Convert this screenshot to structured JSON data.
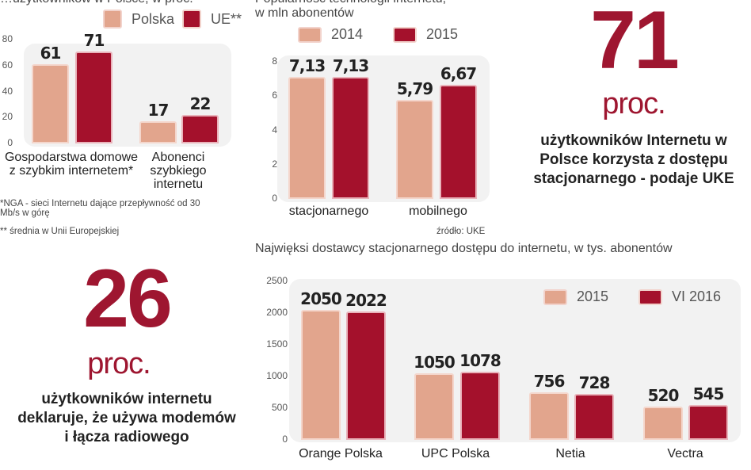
{
  "colors": {
    "light": "#e2a58d",
    "dark": "#a4112c",
    "accent": "#9e1630"
  },
  "chart_data": [
    {
      "type": "bar",
      "title": "…użytkowników w Polsce, w proc.",
      "categories": [
        "Gospodarstwa domowe z szybkim internetem*",
        "Abonenci szybkiego internetu"
      ],
      "series": [
        {
          "name": "Polska",
          "values": [
            61,
            17
          ]
        },
        {
          "name": "UE**",
          "values": [
            71,
            22
          ]
        }
      ],
      "value_labels": [
        [
          "61",
          "17"
        ],
        [
          "71",
          "22"
        ]
      ],
      "ylim": [
        0,
        80
      ],
      "yticks": [
        "0",
        "20",
        "40",
        "60",
        "80"
      ],
      "legend": "top",
      "notes": [
        "*NGA - sieci Internetu dające przepływność od 30 Mb/s w górę",
        "** średnia w Unii Europejskiej"
      ]
    },
    {
      "type": "bar",
      "title": "Popularność technologii internetu,",
      "subtitle": "w mln abonentów",
      "categories": [
        "stacjonarnego",
        "mobilnego"
      ],
      "series": [
        {
          "name": "2014",
          "values": [
            7.13,
            5.79
          ]
        },
        {
          "name": "2015",
          "values": [
            7.13,
            6.67
          ]
        }
      ],
      "value_labels": [
        [
          "7,13",
          "5,79"
        ],
        [
          "7,13",
          "6,67"
        ]
      ],
      "ylim": [
        0,
        8
      ],
      "yticks": [
        "0",
        "2",
        "4",
        "6",
        "8"
      ],
      "legend": "top",
      "source": "źródło: UKE"
    },
    {
      "type": "bar",
      "title": "Najwięksi dostawcy stacjonarnego dostępu do internetu, w tys. abonentów",
      "categories": [
        "Orange Polska",
        "UPC Polska",
        "Netia",
        "Vectra"
      ],
      "series": [
        {
          "name": "2015",
          "values": [
            2050,
            1050,
            756,
            520
          ]
        },
        {
          "name": "VI 2016",
          "values": [
            2022,
            1078,
            728,
            545
          ]
        }
      ],
      "value_labels": [
        [
          "2050",
          "1050",
          "756",
          "520"
        ],
        [
          "2022",
          "1078",
          "728",
          "545"
        ]
      ],
      "ylim": [
        0,
        2500
      ],
      "yticks": [
        "0",
        "500",
        "1000",
        "1500",
        "2000",
        "2500"
      ],
      "legend": "top-right"
    }
  ],
  "stats": [
    {
      "number": "71",
      "unit": "proc.",
      "text": "użytkowników Internetu w Polsce korzysta z dostępu stacjonarnego - podaje UKE"
    },
    {
      "number": "26",
      "unit": "proc.",
      "text": "użytkowników internetu deklaruje, że używa modemów i łącza radiowego"
    }
  ]
}
